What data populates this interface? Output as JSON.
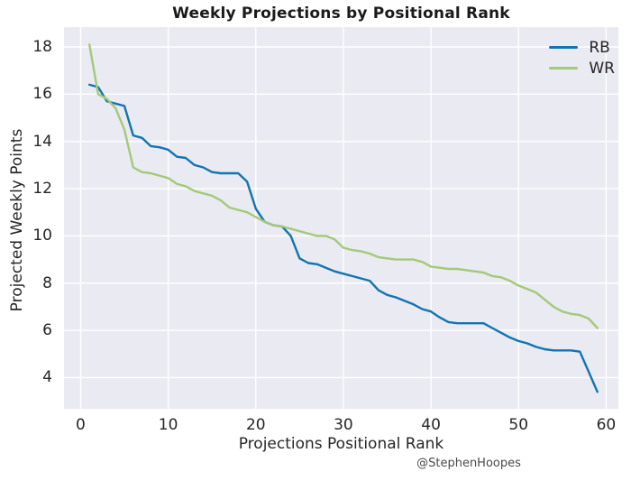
{
  "figure": {
    "title": "Weekly Projections by Positional Rank",
    "watermark": "@StephenHoopes"
  },
  "chart_data": {
    "type": "line",
    "title": "Weekly Projections by Positional Rank",
    "xlabel": "Projections Positional Rank",
    "ylabel": "Projected Weekly Points",
    "annotation": "@StephenHoopes",
    "grid": true,
    "grid_style": "seaborn-darkgrid",
    "background_color": "#eaeaf2",
    "gridline_color": "#ffffff",
    "text_color": "#262626",
    "legend_position": "upper-right",
    "xlim": [
      -1.9,
      61.4
    ],
    "ylim": [
      2.68,
      18.84
    ],
    "xticks": [
      0,
      10,
      20,
      30,
      40,
      50,
      60
    ],
    "yticks": [
      4,
      6,
      8,
      10,
      12,
      14,
      16,
      18
    ],
    "x": [
      1,
      2,
      3,
      4,
      5,
      6,
      7,
      8,
      9,
      10,
      11,
      12,
      13,
      14,
      15,
      16,
      17,
      18,
      19,
      20,
      21,
      22,
      23,
      24,
      25,
      26,
      27,
      28,
      29,
      30,
      31,
      32,
      33,
      34,
      35,
      36,
      37,
      38,
      39,
      40,
      41,
      42,
      43,
      44,
      45,
      46,
      47,
      48,
      49,
      50,
      51,
      52,
      53,
      54,
      55,
      56,
      57,
      58,
      59
    ],
    "series": [
      {
        "name": "RB",
        "color": "#1274b0",
        "values": [
          16.4,
          16.3,
          15.7,
          15.6,
          15.5,
          14.25,
          14.15,
          13.8,
          13.75,
          13.65,
          13.35,
          13.3,
          13.0,
          12.9,
          12.7,
          12.65,
          12.65,
          12.65,
          12.3,
          11.15,
          10.6,
          10.45,
          10.4,
          10.0,
          9.05,
          8.85,
          8.8,
          8.65,
          8.5,
          8.4,
          8.3,
          8.2,
          8.1,
          7.7,
          7.5,
          7.4,
          7.25,
          7.1,
          6.9,
          6.8,
          6.55,
          6.35,
          6.3,
          6.3,
          6.3,
          6.3,
          6.1,
          5.9,
          5.7,
          5.55,
          5.45,
          5.3,
          5.2,
          5.15,
          5.15,
          5.15,
          5.1,
          4.25,
          3.4
        ]
      },
      {
        "name": "WR",
        "color": "#a3c979",
        "values": [
          18.1,
          16.0,
          15.8,
          15.4,
          14.5,
          12.9,
          12.7,
          12.65,
          12.55,
          12.45,
          12.2,
          12.1,
          11.9,
          11.8,
          11.7,
          11.5,
          11.2,
          11.1,
          11.0,
          10.8,
          10.6,
          10.45,
          10.4,
          10.3,
          10.2,
          10.1,
          10.0,
          10.0,
          9.85,
          9.5,
          9.4,
          9.35,
          9.25,
          9.1,
          9.05,
          9.0,
          9.0,
          9.0,
          8.9,
          8.7,
          8.65,
          8.6,
          8.6,
          8.55,
          8.5,
          8.45,
          8.3,
          8.25,
          8.1,
          7.9,
          7.75,
          7.6,
          7.3,
          7.0,
          6.8,
          6.7,
          6.65,
          6.5,
          6.1
        ]
      }
    ]
  }
}
